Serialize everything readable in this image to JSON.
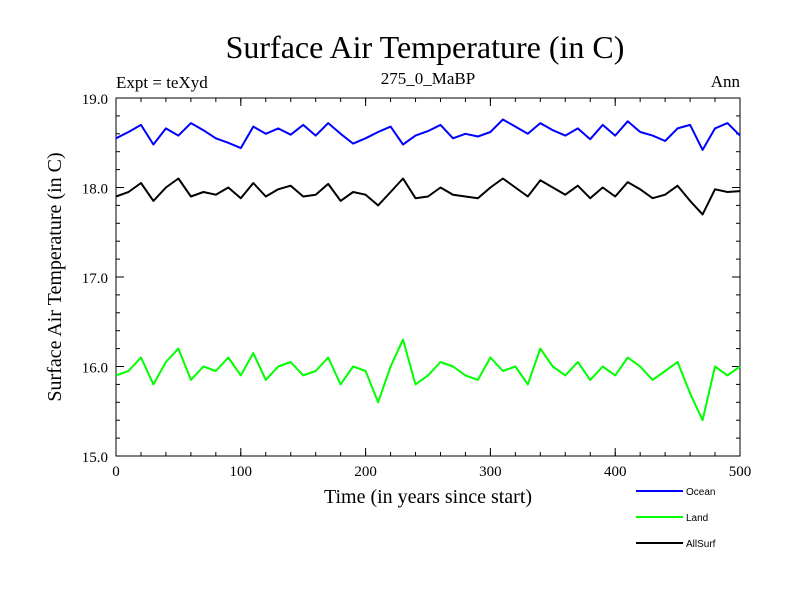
{
  "chart_data": {
    "type": "line",
    "title": "Surface Air Temperature (in C)",
    "subtitle": "275_0_MaBP",
    "experiment_label": "Expt = teXyd",
    "period_label": "Ann",
    "xlabel": "Time (in years since start)",
    "ylabel": "Surface Air Temperature (in C)",
    "xlim": [
      0,
      500
    ],
    "ylim": [
      15.0,
      19.0
    ],
    "x_ticks": [
      0,
      100,
      200,
      300,
      400,
      500
    ],
    "y_ticks": [
      15.0,
      16.0,
      17.0,
      18.0,
      19.0
    ],
    "y_tick_labels": [
      "15.0",
      "16.0",
      "17.0",
      "18.0",
      "19.0"
    ],
    "grid": false,
    "legend_position": "bottom-right",
    "x_step": 10,
    "series": [
      {
        "name": "Ocean",
        "color": "#0000ff",
        "values": [
          18.55,
          18.62,
          18.7,
          18.48,
          18.66,
          18.58,
          18.72,
          18.64,
          18.55,
          18.5,
          18.44,
          18.68,
          18.6,
          18.66,
          18.59,
          18.7,
          18.58,
          18.72,
          18.6,
          18.49,
          18.55,
          18.62,
          18.68,
          18.48,
          18.58,
          18.63,
          18.7,
          18.55,
          18.6,
          18.57,
          18.62,
          18.76,
          18.68,
          18.6,
          18.72,
          18.64,
          18.58,
          18.66,
          18.54,
          18.7,
          18.58,
          18.74,
          18.62,
          18.58,
          18.52,
          18.66,
          18.7,
          18.42,
          18.66,
          18.72,
          18.58
        ]
      },
      {
        "name": "Land",
        "color": "#00ff00",
        "values": [
          15.9,
          15.95,
          16.1,
          15.8,
          16.05,
          16.2,
          15.85,
          16.0,
          15.95,
          16.1,
          15.9,
          16.15,
          15.85,
          16.0,
          16.05,
          15.9,
          15.95,
          16.1,
          15.8,
          16.0,
          15.95,
          15.6,
          16.0,
          16.3,
          15.8,
          15.9,
          16.05,
          16.0,
          15.9,
          15.85,
          16.1,
          15.95,
          16.0,
          15.8,
          16.2,
          16.0,
          15.9,
          16.05,
          15.85,
          16.0,
          15.9,
          16.1,
          16.0,
          15.85,
          15.95,
          16.05,
          15.7,
          15.4,
          16.0,
          15.9,
          16.0
        ]
      },
      {
        "name": "AllSurf",
        "color": "#000000",
        "values": [
          17.9,
          17.95,
          18.05,
          17.85,
          18.0,
          18.1,
          17.9,
          17.95,
          17.92,
          18.0,
          17.88,
          18.05,
          17.9,
          17.98,
          18.02,
          17.9,
          17.92,
          18.04,
          17.85,
          17.95,
          17.92,
          17.8,
          17.95,
          18.1,
          17.88,
          17.9,
          18.0,
          17.92,
          17.9,
          17.88,
          18.0,
          18.1,
          18.0,
          17.9,
          18.08,
          18.0,
          17.92,
          18.02,
          17.88,
          18.0,
          17.9,
          18.06,
          17.98,
          17.88,
          17.92,
          18.02,
          17.85,
          17.7,
          17.98,
          17.95,
          17.96
        ]
      }
    ]
  }
}
